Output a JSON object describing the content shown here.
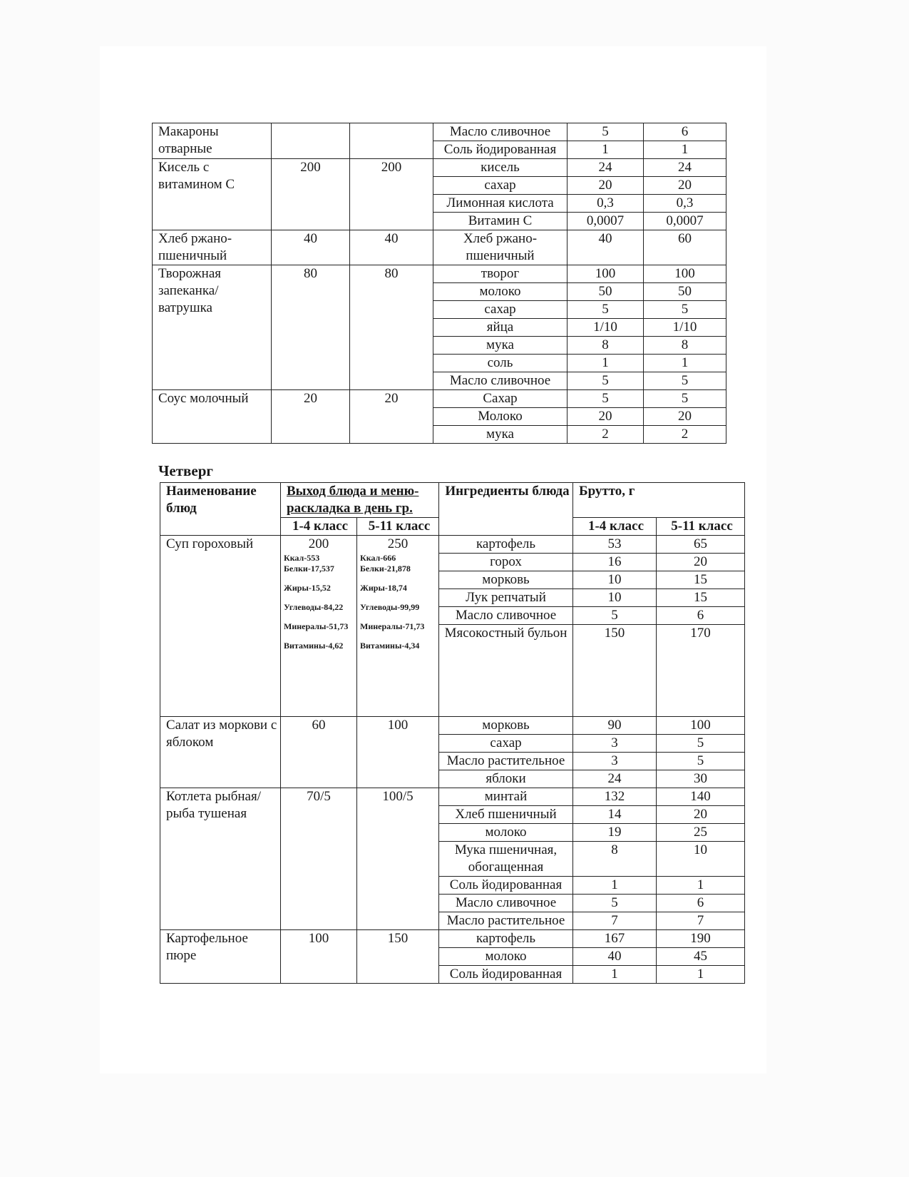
{
  "table1": {
    "dishes": [
      {
        "name": "Макароны отварные",
        "out1": "",
        "out2": "",
        "ingredients": [
          [
            "Масло сливочное",
            "5",
            "6"
          ],
          [
            "Соль йодированная",
            "1",
            "1"
          ]
        ]
      },
      {
        "name": "Кисель с витамином С",
        "out1": "200",
        "out2": "200",
        "ingredients": [
          [
            "кисель",
            "24",
            "24"
          ],
          [
            "сахар",
            "20",
            "20"
          ],
          [
            "Лимонная кислота",
            "0,3",
            "0,3"
          ],
          [
            "Витамин С",
            "0,0007",
            "0,0007"
          ]
        ]
      },
      {
        "name": "Хлеб ржано-пшеничный",
        "out1": "40",
        "out2": "40",
        "ingredients": [
          [
            "Хлеб ржано-пшеничный",
            "40",
            "60"
          ]
        ]
      },
      {
        "name": "Творожная запеканка/ ватрушка",
        "out1": "80",
        "out2": "80",
        "ingredients": [
          [
            "творог",
            "100",
            "100"
          ],
          [
            "молоко",
            "50",
            "50"
          ],
          [
            "сахар",
            "5",
            "5"
          ],
          [
            "яйца",
            "1/10",
            "1/10"
          ],
          [
            "мука",
            "8",
            "8"
          ],
          [
            "соль",
            "1",
            "1"
          ],
          [
            "Масло сливочное",
            "5",
            "5"
          ]
        ]
      },
      {
        "name": "Соус молочный",
        "out1": "20",
        "out2": "20",
        "ingredients": [
          [
            "Сахар",
            "5",
            "5"
          ],
          [
            "Молоко",
            "20",
            "20"
          ],
          [
            "мука",
            "2",
            "2"
          ]
        ]
      }
    ]
  },
  "day_heading": "Четверг",
  "table2": {
    "headers": {
      "name": "Наименование блюд",
      "output": "Выход блюда и меню-раскладка в день гр.",
      "ingredients": "Ингредиенты блюда",
      "brutto": "Брутто, г",
      "grade1": "1-4 класс",
      "grade2": "5-11 класс"
    },
    "dishes": [
      {
        "name": "Суп гороховый",
        "out1": "200",
        "out2": "250",
        "nutrition1": [
          "Ккал-553 Белки-17,537",
          "Жиры-15,52",
          "Углеводы-84,22",
          "Минералы-51,73",
          "Витамины-4,62"
        ],
        "nutrition2": [
          "Ккал-666 Белки-21,878",
          "Жиры-18,74",
          "Углеводы-99,99",
          "Минералы-71,73",
          "Витамины-4,34"
        ],
        "ingredients": [
          [
            "картофель",
            "53",
            "65"
          ],
          [
            "горох",
            "16",
            "20"
          ],
          [
            "морковь",
            "10",
            "15"
          ],
          [
            "Лук репчатый",
            "10",
            "15"
          ],
          [
            "Масло сливочное",
            "5",
            "6"
          ],
          [
            "Мясокостный бульон",
            "150",
            "170"
          ]
        ]
      },
      {
        "name": "Салат из моркови с яблоком",
        "out1": "60",
        "out2": "100",
        "ingredients": [
          [
            "морковь",
            "90",
            "100"
          ],
          [
            "сахар",
            "3",
            "5"
          ],
          [
            "Масло растительное",
            "3",
            "5"
          ],
          [
            "яблоки",
            "24",
            "30"
          ]
        ]
      },
      {
        "name": "Котлета рыбная/рыба тушеная",
        "out1": "70/5",
        "out2": "100/5",
        "ingredients": [
          [
            "минтай",
            "132",
            "140"
          ],
          [
            "Хлеб пшеничный",
            "14",
            "20"
          ],
          [
            "молоко",
            "19",
            "25"
          ],
          [
            "Мука пшеничная, обогащенная",
            "8",
            "10"
          ],
          [
            "Соль йодированная",
            "1",
            "1"
          ],
          [
            "Масло сливочное",
            "5",
            "6"
          ],
          [
            "Масло растительное",
            "7",
            "7"
          ]
        ]
      },
      {
        "name": "Картофельное пюре",
        "out1": "100",
        "out2": "150",
        "ingredients": [
          [
            "картофель",
            "167",
            "190"
          ],
          [
            "молоко",
            "40",
            "45"
          ],
          [
            "Соль йодированная",
            "1",
            "1"
          ]
        ]
      }
    ]
  }
}
